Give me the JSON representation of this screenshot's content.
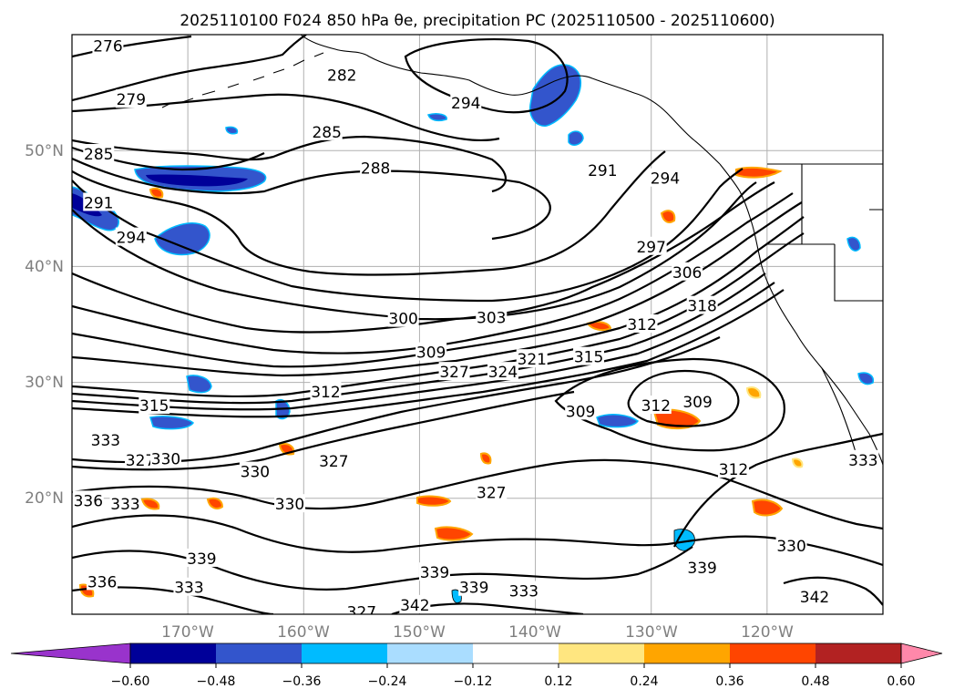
{
  "title": "2025110100 F024 850 hPa θe, precipitation PC (2025110500 - 2025110600)",
  "map": {
    "projection": "PlateCarree",
    "lon_range": [
      -180,
      -110
    ],
    "lat_range": [
      10,
      60
    ],
    "gridlines": true,
    "lon_ticks": [
      "170°W",
      "160°W",
      "150°W",
      "140°W",
      "130°W",
      "120°W"
    ],
    "lat_ticks": [
      "50°N",
      "40°N",
      "30°N",
      "20°N"
    ]
  },
  "theta_e_contours": {
    "units": "K",
    "interval": 3,
    "labels_shown": [
      "276",
      "279",
      "282",
      "285",
      "288",
      "291",
      "294",
      "297",
      "300",
      "303",
      "306",
      "309",
      "312",
      "315",
      "318",
      "321",
      "324",
      "327",
      "330",
      "333",
      "336",
      "339",
      "342"
    ]
  },
  "precip_pc": {
    "colorbar": {
      "levels": [
        -0.6,
        -0.48,
        -0.36,
        -0.24,
        -0.12,
        0.12,
        0.24,
        0.36,
        0.48,
        0.6
      ],
      "tick_labels": [
        "−0.60",
        "−0.48",
        "−0.36",
        "−0.24",
        "−0.12",
        "0.12",
        "0.24",
        "0.36",
        "0.48",
        "0.60"
      ],
      "colors": [
        "#9933cc",
        "#000099",
        "#3355cc",
        "#00bbff",
        "#aaddff",
        "#ffffff",
        "#ffe680",
        "#ffa500",
        "#ff4500",
        "#b22222",
        "#ff88aa"
      ],
      "extend": "both"
    }
  },
  "contour_label_instances": [
    {
      "text": "276",
      "lon": -176.9,
      "lat": 59.0
    },
    {
      "text": "279",
      "lon": -174.9,
      "lat": 54.4
    },
    {
      "text": "282",
      "lon": -156.7,
      "lat": 56.5
    },
    {
      "text": "285",
      "lon": -158.0,
      "lat": 51.6
    },
    {
      "text": "285",
      "lon": -177.7,
      "lat": 49.7
    },
    {
      "text": "288",
      "lon": -153.8,
      "lat": 48.5
    },
    {
      "text": "291",
      "lon": -177.7,
      "lat": 45.5
    },
    {
      "text": "291",
      "lon": -134.2,
      "lat": 48.3
    },
    {
      "text": "294",
      "lon": -174.9,
      "lat": 42.5
    },
    {
      "text": "294",
      "lon": -146.0,
      "lat": 54.1
    },
    {
      "text": "294",
      "lon": -128.8,
      "lat": 47.6
    },
    {
      "text": "297",
      "lon": -130.0,
      "lat": 41.7
    },
    {
      "text": "300",
      "lon": -151.4,
      "lat": 35.5
    },
    {
      "text": "303",
      "lon": -143.8,
      "lat": 35.6
    },
    {
      "text": "306",
      "lon": -126.9,
      "lat": 39.5
    },
    {
      "text": "309",
      "lon": -149.0,
      "lat": 32.6
    },
    {
      "text": "309",
      "lon": -136.1,
      "lat": 27.5
    },
    {
      "text": "309",
      "lon": -126.0,
      "lat": 28.3
    },
    {
      "text": "312",
      "lon": -158.1,
      "lat": 29.2
    },
    {
      "text": "312",
      "lon": -130.8,
      "lat": 35.0
    },
    {
      "text": "312",
      "lon": -129.6,
      "lat": 28.0
    },
    {
      "text": "312",
      "lon": -122.9,
      "lat": 22.5
    },
    {
      "text": "315",
      "lon": -172.9,
      "lat": 28.0
    },
    {
      "text": "315",
      "lon": -135.4,
      "lat": 32.2
    },
    {
      "text": "318",
      "lon": -125.6,
      "lat": 36.6
    },
    {
      "text": "321",
      "lon": -140.3,
      "lat": 32.0
    },
    {
      "text": "324",
      "lon": -142.8,
      "lat": 30.9
    },
    {
      "text": "327",
      "lon": -147.0,
      "lat": 30.9
    },
    {
      "text": "327",
      "lon": -174.1,
      "lat": 23.3
    },
    {
      "text": "327",
      "lon": -157.4,
      "lat": 23.2
    },
    {
      "text": "327",
      "lon": -143.8,
      "lat": 20.5
    },
    {
      "text": "327",
      "lon": -155.0,
      "lat": 10.2
    },
    {
      "text": "330",
      "lon": -171.9,
      "lat": 23.4
    },
    {
      "text": "330",
      "lon": -164.2,
      "lat": 22.3
    },
    {
      "text": "330",
      "lon": -161.2,
      "lat": 19.5
    },
    {
      "text": "330",
      "lon": -117.9,
      "lat": 15.9
    },
    {
      "text": "333",
      "lon": -177.1,
      "lat": 25.0
    },
    {
      "text": "333",
      "lon": -175.4,
      "lat": 19.5
    },
    {
      "text": "333",
      "lon": -169.9,
      "lat": 12.3
    },
    {
      "text": "333",
      "lon": -141.0,
      "lat": 12.0
    },
    {
      "text": "333",
      "lon": -111.7,
      "lat": 23.3
    },
    {
      "text": "336",
      "lon": -178.6,
      "lat": 19.8
    },
    {
      "text": "336",
      "lon": -177.4,
      "lat": 12.8
    },
    {
      "text": "339",
      "lon": -168.8,
      "lat": 14.8
    },
    {
      "text": "339",
      "lon": -148.7,
      "lat": 13.6
    },
    {
      "text": "339",
      "lon": -145.3,
      "lat": 12.3
    },
    {
      "text": "339",
      "lon": -125.6,
      "lat": 14.0
    },
    {
      "text": "342",
      "lon": -150.4,
      "lat": 10.8
    },
    {
      "text": "342",
      "lon": -115.9,
      "lat": 11.5
    }
  ]
}
